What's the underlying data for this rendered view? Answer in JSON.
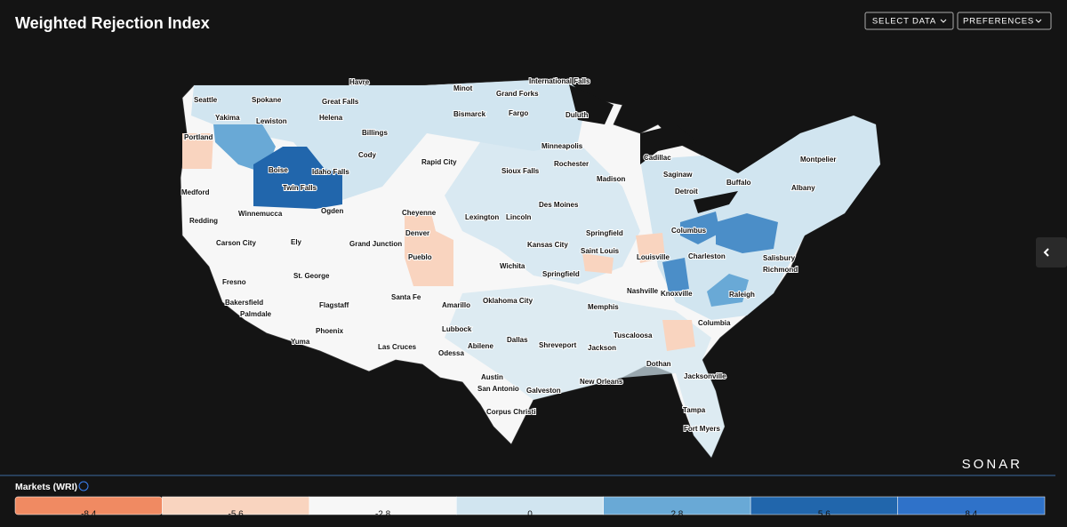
{
  "header": {
    "title": "Weighted Rejection Index",
    "buttons": [
      "SELECT DATA",
      "PREFERENCES"
    ]
  },
  "map": {
    "cities": [
      "Seattle",
      "Spokane",
      "Havre",
      "Minot",
      "International Falls",
      "Grand Forks",
      "Great Falls",
      "Yakima",
      "Lewiston",
      "Helena",
      "Bismarck",
      "Fargo",
      "Duluth",
      "Portland",
      "Billings",
      "Minneapolis",
      "Cody",
      "Rapid City",
      "Rochester",
      "Boise",
      "Idaho Falls",
      "Sioux Falls",
      "Madison",
      "Cadillac",
      "Saginaw",
      "Medford",
      "Twin Falls",
      "Detroit",
      "Buffalo",
      "Albany",
      "Montpelier",
      "Des Moines",
      "Redding",
      "Winnemucca",
      "Ogden",
      "Cheyenne",
      "Lexington",
      "Lincoln",
      "Denver",
      "Springfield",
      "Columbus",
      "Ely",
      "Carson City",
      "Grand Junction",
      "Kansas City",
      "Saint Louis",
      "Louisville",
      "Charleston",
      "Salisbury",
      "Pueblo",
      "Wichita",
      "Richmond",
      "Fresno",
      "St. George",
      "Springfield",
      "Nashville",
      "Knoxville",
      "Raleigh",
      "Santa Fe",
      "Bakersfield",
      "Flagstaff",
      "Amarillo",
      "Oklahoma City",
      "Memphis",
      "Palmdale",
      "Columbia",
      "Phoenix",
      "Lubbock",
      "Tuscaloosa",
      "Yuma",
      "Las Cruces",
      "Abilene",
      "Dallas",
      "Shreveport",
      "Jackson",
      "Odessa",
      "Dothan",
      "Jacksonville",
      "Austin",
      "New Orleans",
      "San Antonio",
      "Galveston",
      "Tampa",
      "Corpus Christi",
      "Fort Myers"
    ]
  },
  "legend": {
    "title": "Markets (WRI)",
    "items": [
      {
        "value": -8.4,
        "color": "#f08a62"
      },
      {
        "value": -5.6,
        "color": "#f9d4bf"
      },
      {
        "value": -2.8,
        "color": "#f7f7f7"
      },
      {
        "value": 0,
        "color": "#d1e5f0"
      },
      {
        "value": 2.8,
        "color": "#69a9d6"
      },
      {
        "value": 5.6,
        "color": "#2166ac"
      },
      {
        "value": 8.4,
        "color": "#2f72c9"
      }
    ]
  },
  "brand": "SONAR"
}
